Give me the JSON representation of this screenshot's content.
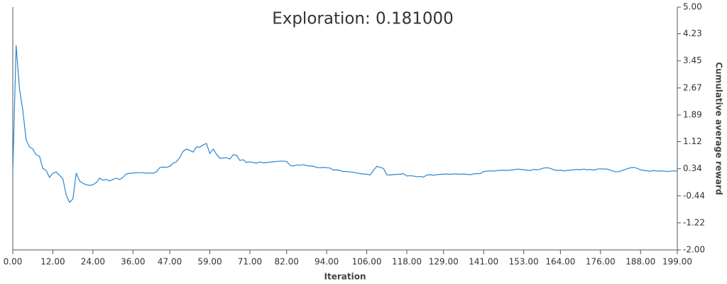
{
  "chart_data": {
    "type": "line",
    "title": "Exploration: 0.181000",
    "x_label": "Iteration",
    "y_label": "Cumulative average reward",
    "x": [
      0,
      1,
      2,
      3,
      4,
      5,
      6,
      7,
      8,
      9,
      10,
      11,
      12,
      13,
      14,
      15,
      16,
      17,
      18,
      19,
      20,
      21,
      22,
      23,
      24,
      25,
      26,
      27,
      28,
      29,
      30,
      31,
      32,
      33,
      34,
      35,
      36,
      37,
      38,
      39,
      40,
      41,
      42,
      43,
      44,
      45,
      46,
      47,
      48,
      49,
      50,
      51,
      52,
      53,
      54,
      55,
      56,
      57,
      58,
      59,
      60,
      61,
      62,
      63,
      64,
      65,
      66,
      67,
      68,
      69,
      70,
      71,
      72,
      73,
      74,
      75,
      76,
      77,
      78,
      79,
      80,
      81,
      82,
      83,
      84,
      85,
      86,
      87,
      88,
      89,
      90,
      91,
      92,
      93,
      94,
      95,
      96,
      97,
      98,
      99,
      100,
      101,
      102,
      103,
      104,
      105,
      106,
      107,
      108,
      109,
      110,
      111,
      112,
      113,
      114,
      115,
      116,
      117,
      118,
      119,
      120,
      121,
      122,
      123,
      124,
      125,
      126,
      127,
      128,
      129,
      130,
      131,
      132,
      133,
      134,
      135,
      136,
      137,
      138,
      139,
      140,
      141,
      142,
      143,
      144,
      145,
      146,
      147,
      148,
      149,
      150,
      151,
      152,
      153,
      154,
      155,
      156,
      157,
      158,
      159,
      160,
      161,
      162,
      163,
      164,
      165,
      166,
      167,
      168,
      169,
      170,
      171,
      172,
      173,
      174,
      175,
      176,
      177,
      178,
      179,
      180,
      181,
      182,
      183,
      184,
      185,
      186,
      187,
      188,
      189,
      190,
      191,
      192,
      193,
      194,
      195,
      196,
      197,
      198,
      199
    ],
    "series": [
      {
        "color": "#2a86d1",
        "values": [
          0.23,
          3.89,
          2.65,
          2.03,
          1.17,
          0.97,
          0.91,
          0.74,
          0.7,
          0.35,
          0.29,
          0.09,
          0.21,
          0.25,
          0.15,
          0.05,
          -0.42,
          -0.63,
          -0.53,
          0.21,
          -0.01,
          -0.08,
          -0.12,
          -0.14,
          -0.12,
          -0.06,
          0.07,
          0.01,
          0.03,
          -0.01,
          0.03,
          0.07,
          0.03,
          0.09,
          0.19,
          0.21,
          0.21,
          0.23,
          0.22,
          0.23,
          0.21,
          0.22,
          0.21,
          0.25,
          0.37,
          0.39,
          0.38,
          0.41,
          0.5,
          0.54,
          0.66,
          0.84,
          0.91,
          0.87,
          0.82,
          0.97,
          0.96,
          1.03,
          1.07,
          0.78,
          0.91,
          0.76,
          0.64,
          0.65,
          0.66,
          0.62,
          0.74,
          0.73,
          0.58,
          0.6,
          0.52,
          0.54,
          0.52,
          0.5,
          0.54,
          0.51,
          0.52,
          0.53,
          0.54,
          0.55,
          0.56,
          0.56,
          0.55,
          0.44,
          0.42,
          0.45,
          0.44,
          0.46,
          0.43,
          0.42,
          0.41,
          0.38,
          0.37,
          0.38,
          0.37,
          0.36,
          0.3,
          0.31,
          0.29,
          0.26,
          0.26,
          0.25,
          0.24,
          0.22,
          0.2,
          0.19,
          0.18,
          0.16,
          0.29,
          0.41,
          0.38,
          0.35,
          0.17,
          0.16,
          0.17,
          0.18,
          0.18,
          0.2,
          0.13,
          0.14,
          0.13,
          0.11,
          0.12,
          0.1,
          0.16,
          0.17,
          0.15,
          0.17,
          0.18,
          0.18,
          0.19,
          0.18,
          0.19,
          0.19,
          0.18,
          0.19,
          0.18,
          0.17,
          0.19,
          0.2,
          0.2,
          0.26,
          0.27,
          0.28,
          0.27,
          0.29,
          0.29,
          0.3,
          0.29,
          0.3,
          0.31,
          0.33,
          0.32,
          0.31,
          0.3,
          0.29,
          0.32,
          0.31,
          0.33,
          0.36,
          0.37,
          0.35,
          0.31,
          0.29,
          0.3,
          0.28,
          0.29,
          0.3,
          0.31,
          0.32,
          0.31,
          0.33,
          0.31,
          0.32,
          0.3,
          0.33,
          0.34,
          0.33,
          0.33,
          0.3,
          0.26,
          0.25,
          0.27,
          0.31,
          0.34,
          0.37,
          0.38,
          0.35,
          0.31,
          0.29,
          0.28,
          0.27,
          0.29,
          0.27,
          0.28,
          0.27,
          0.26,
          0.27,
          0.28,
          0.27
        ]
      }
    ],
    "xlim": [
      0,
      199
    ],
    "xticks": [
      {
        "value": 0,
        "label": "0.00"
      },
      {
        "value": 12,
        "label": "12.00"
      },
      {
        "value": 24,
        "label": "24.00"
      },
      {
        "value": 36,
        "label": "36.00"
      },
      {
        "value": 47,
        "label": "47.00"
      },
      {
        "value": 59,
        "label": "59.00"
      },
      {
        "value": 71,
        "label": "71.00"
      },
      {
        "value": 82,
        "label": "82.00"
      },
      {
        "value": 94,
        "label": "94.00"
      },
      {
        "value": 106,
        "label": "106.00"
      },
      {
        "value": 118,
        "label": "118.00"
      },
      {
        "value": 129,
        "label": "129.00"
      },
      {
        "value": 141,
        "label": "141.00"
      },
      {
        "value": 153,
        "label": "153.00"
      },
      {
        "value": 164,
        "label": "164.00"
      },
      {
        "value": 176,
        "label": "176.00"
      },
      {
        "value": 188,
        "label": "188.00"
      },
      {
        "value": 199,
        "label": "199.00"
      }
    ],
    "ylim": [
      -2,
      5
    ],
    "yticks": [
      {
        "value": 5,
        "label": "5.00"
      },
      {
        "value": 4.23,
        "label": "4.23"
      },
      {
        "value": 3.45,
        "label": "3.45"
      },
      {
        "value": 2.67,
        "label": "2.67"
      },
      {
        "value": 1.89,
        "label": "1.89"
      },
      {
        "value": 1.12,
        "label": "1.12"
      },
      {
        "value": 0.34,
        "label": "0.34"
      },
      {
        "value": -0.44,
        "label": "-0.44"
      },
      {
        "value": -1.22,
        "label": "-1.22"
      },
      {
        "value": -2,
        "label": "-2.00"
      }
    ]
  }
}
